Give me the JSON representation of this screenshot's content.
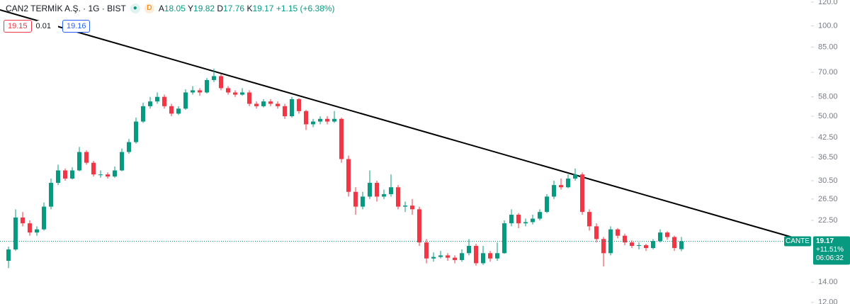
{
  "header": {
    "symbol": "ÇAN2 TERMİK A.Ş. · 1G · BIST",
    "status": "D",
    "ohlc": [
      {
        "label": "A",
        "value": "18.05"
      },
      {
        "label": "Y",
        "value": "19.82"
      },
      {
        "label": "D",
        "value": "17.76"
      },
      {
        "label": "K",
        "value": "19.17"
      }
    ],
    "change": "+1.15 (+6.38%)",
    "bid": "19.15",
    "spread": "0.01",
    "ask": "19.16"
  },
  "price_marker": {
    "symbol": "CANTE",
    "price": "19.17",
    "change": "+11.51%",
    "countdown": "06:06:32"
  },
  "chart_data": {
    "type": "candlestick",
    "log_scale": true,
    "up_color": "#089981",
    "down_color": "#f23645",
    "ylim": [
      11.85,
      121.9
    ],
    "yticks": [
      {
        "value": 120,
        "label": "120.0"
      },
      {
        "value": 100,
        "label": "100.0"
      },
      {
        "value": 85,
        "label": "85.00"
      },
      {
        "value": 70,
        "label": "70.00"
      },
      {
        "value": 58,
        "label": "58.00"
      },
      {
        "value": 50,
        "label": "50.00"
      },
      {
        "value": 42.5,
        "label": "42.50"
      },
      {
        "value": 36.5,
        "label": "36.50"
      },
      {
        "value": 30.5,
        "label": "30.50"
      },
      {
        "value": 26.5,
        "label": "26.50"
      },
      {
        "value": 22.5,
        "label": "22.50"
      },
      {
        "value": 14,
        "label": "14.00"
      },
      {
        "value": 12,
        "label": "12.00"
      }
    ],
    "open": [
      16.5,
      18,
      23,
      22,
      20.5,
      21,
      25,
      30,
      33,
      31,
      33,
      38,
      35,
      32,
      32,
      31.5,
      33,
      38,
      41,
      48,
      54,
      56,
      58,
      54,
      51,
      53,
      60,
      61,
      60,
      66,
      68,
      62,
      60,
      59,
      60,
      55,
      54,
      56,
      55,
      54,
      50,
      57,
      52,
      47,
      48,
      49,
      48,
      49,
      36,
      28,
      25,
      27,
      30,
      27,
      27.5,
      29,
      25,
      25.2,
      24.5,
      19,
      16.8,
      17,
      17.2,
      16.9,
      16.6,
      17.5,
      18.5,
      16.2,
      17.5,
      16.8,
      17.5,
      22,
      23.5,
      22,
      22.2,
      22.8,
      24,
      27,
      29.5,
      29,
      31,
      32,
      24,
      21.5,
      19.5,
      17.5,
      21,
      20,
      19,
      18.5,
      18.6,
      18.2,
      19.2,
      20.5,
      19.8,
      18.05
    ],
    "high": [
      18.4,
      24.5,
      24,
      22.5,
      21.5,
      25.8,
      31,
      34.5,
      33.5,
      33.8,
      39.5,
      38.5,
      35.5,
      33,
      32.5,
      34,
      39,
      42,
      49.5,
      55.5,
      58,
      60,
      59,
      55,
      54,
      61.5,
      63,
      62,
      67,
      72,
      69,
      63,
      61,
      62,
      61,
      56,
      57,
      57,
      56,
      55,
      58,
      57.5,
      52.5,
      49,
      50,
      50,
      52,
      49.5,
      37,
      29,
      28,
      33,
      30.5,
      28.5,
      32,
      29.5,
      26,
      26.5,
      25,
      19.5,
      17.6,
      17.8,
      17.5,
      17.2,
      18,
      19.5,
      18.8,
      18.5,
      17.8,
      19,
      22.5,
      24.5,
      23.8,
      22.8,
      23.5,
      24.5,
      27.5,
      30.5,
      31,
      32,
      33.5,
      32.5,
      24.5,
      22,
      19.8,
      21.5,
      21.2,
      20.3,
      19.3,
      19,
      18.8,
      19.5,
      21,
      20.7,
      20,
      19.82
    ],
    "low": [
      15.6,
      17.8,
      21.5,
      20,
      20,
      20.8,
      24.5,
      29.5,
      30.5,
      30.8,
      32.8,
      34.5,
      31.5,
      31.2,
      31,
      31.2,
      32.8,
      37.5,
      40.5,
      47.5,
      53,
      55,
      53,
      50,
      50.5,
      52.5,
      59,
      58.5,
      59.5,
      65,
      61,
      59,
      58,
      58.5,
      54,
      53,
      53.5,
      54,
      53,
      49,
      49.5,
      51,
      45,
      46,
      47,
      47,
      47.5,
      35,
      27,
      23.5,
      24.5,
      26.5,
      26,
      26.5,
      27,
      24.5,
      24,
      23.5,
      18.5,
      16.2,
      16.4,
      16.8,
      16.5,
      16.2,
      16.4,
      17.2,
      15.9,
      16,
      16.4,
      16.5,
      17.4,
      21.5,
      21.2,
      21.5,
      21.8,
      22.5,
      23.8,
      26.5,
      28.5,
      28.8,
      30.5,
      23.5,
      20.8,
      19,
      15.8,
      17.2,
      19.6,
      18.6,
      18.2,
      18,
      17.8,
      18,
      19,
      19.4,
      17.8,
      17.76
    ],
    "close": [
      18,
      23,
      22,
      20.5,
      21,
      25,
      30,
      33,
      31,
      33,
      38,
      35,
      32,
      32,
      31.5,
      33,
      38,
      41,
      48,
      54,
      56,
      58,
      54,
      51,
      53,
      60,
      61,
      60,
      66,
      68,
      62,
      60,
      59,
      60,
      55,
      54,
      56,
      55,
      54,
      50,
      57,
      52,
      47,
      48,
      49,
      48,
      49,
      36,
      28,
      25,
      27,
      30,
      27,
      27.5,
      29,
      25,
      25.2,
      24.5,
      19,
      16.8,
      17,
      17.2,
      16.9,
      16.6,
      17.5,
      18.5,
      16.2,
      17.5,
      16.8,
      17.5,
      22,
      23.5,
      22,
      22.2,
      22.8,
      24,
      27,
      29.5,
      29,
      31,
      32,
      24,
      21.5,
      19.5,
      17.5,
      21,
      20,
      19,
      18.5,
      18.6,
      18.2,
      19.2,
      20.5,
      19.8,
      18.2,
      19.17
    ]
  }
}
